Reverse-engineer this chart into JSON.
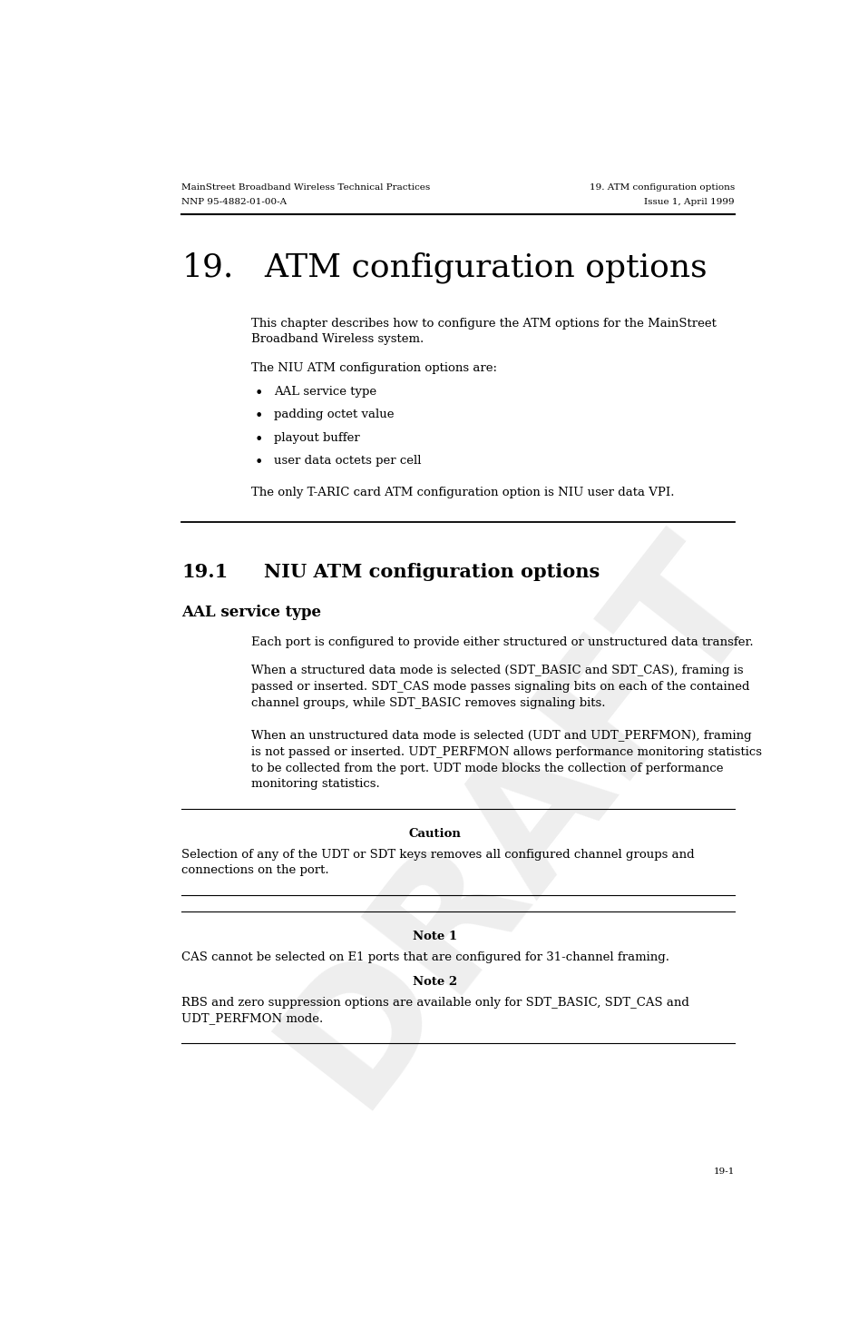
{
  "bg_color": "#ffffff",
  "draft_watermark_color": "#c8c8c8",
  "header_left_line1": "MainStreet Broadband Wireless Technical Practices",
  "header_left_line2": "NNP 95-4882-01-00-A",
  "header_right_line1": "19. ATM configuration options",
  "header_right_line2": "Issue 1, April 1999",
  "chapter_number": "19.",
  "chapter_title": "ATM configuration options",
  "intro_line1": "This chapter describes how to configure the ATM options for the MainStreet",
  "intro_line2": "Broadband Wireless system.",
  "niu_list_intro": "The NIU ATM configuration options are:",
  "niu_list_items": [
    "AAL service type",
    "padding octet value",
    "playout buffer",
    "user data octets per cell"
  ],
  "taric_para": "The only T-ARIC card ATM configuration option is NIU user data VPI.",
  "section_number": "19.1",
  "section_title": "NIU ATM configuration options",
  "subsection_title": "AAL service type",
  "body_para1": "Each port is configured to provide either structured or unstructured data transfer.",
  "body_para2_lines": [
    "When a structured data mode is selected (SDT_BASIC and SDT_CAS), framing is",
    "passed or inserted. SDT_CAS mode passes signaling bits on each of the contained",
    "channel groups, while SDT_BASIC removes signaling bits."
  ],
  "body_para3_lines": [
    "When an unstructured data mode is selected (UDT and UDT_PERFMON), framing",
    "is not passed or inserted. UDT_PERFMON allows performance monitoring statistics",
    "to be collected from the port. UDT mode blocks the collection of performance",
    "monitoring statistics."
  ],
  "caution_label": "Caution",
  "caution_lines": [
    "Selection of any of the UDT or SDT keys removes all configured channel groups and",
    "connections on the port."
  ],
  "note1_label": "Note 1",
  "note1_text": "CAS cannot be selected on E1 ports that are configured for 31-channel framing.",
  "note2_label": "Note 2",
  "note2_lines": [
    "RBS and zero suppression options are available only for SDT_BASIC, SDT_CAS and",
    "UDT_PERFMON mode."
  ],
  "page_number": "19-1",
  "draft_text": "DRAFT",
  "lm": 0.115,
  "rm": 0.955,
  "ti": 0.22,
  "hfs": 7.5,
  "bfs": 9.5,
  "ch_fs": 26,
  "sec_fs": 15,
  "subsec_fs": 12,
  "line_color": "#000000"
}
